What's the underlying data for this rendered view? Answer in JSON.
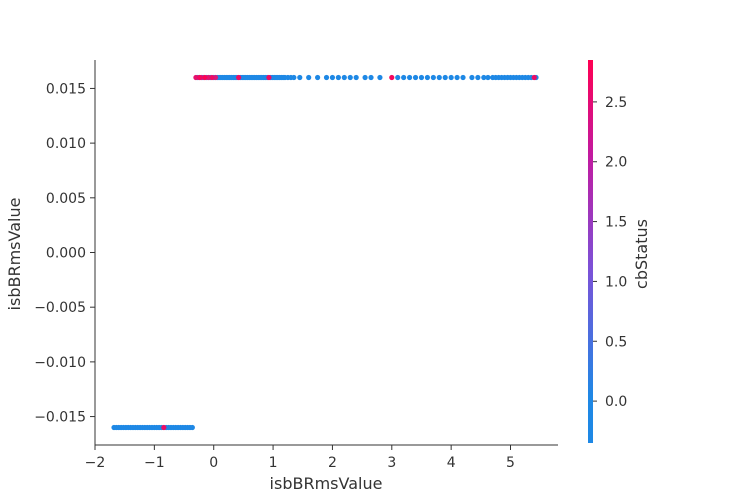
{
  "chart_data": {
    "type": "scatter",
    "xlabel": "isbBRmsValue",
    "ylabel": "isbBRmsValue",
    "xlim": [
      -2,
      5.8
    ],
    "ylim": [
      -0.0176,
      0.0176
    ],
    "x_ticks": [
      -2,
      -1,
      0,
      1,
      2,
      3,
      4,
      5
    ],
    "x_tick_labels": [
      "−2",
      "−1",
      "0",
      "1",
      "2",
      "3",
      "4",
      "5"
    ],
    "y_ticks": [
      0.015,
      0.01,
      0.005,
      0.0,
      -0.005,
      -0.01,
      -0.015
    ],
    "y_tick_labels": [
      "0.015",
      "0.010",
      "0.005",
      "0.000",
      "−0.005",
      "−0.010",
      "−0.015"
    ],
    "grid": false,
    "colorbar": {
      "label": "cbStatus",
      "range": [
        -0.35,
        2.85
      ],
      "ticks": [
        0.0,
        0.5,
        1.0,
        1.5,
        2.0,
        2.5
      ],
      "tick_labels": [
        "0.0",
        "0.5",
        "1.0",
        "1.5",
        "2.0",
        "2.5"
      ],
      "color_low": "#1e88e5",
      "color_mid": "#7b52d8",
      "color_high": "#ff0052"
    },
    "series": [
      {
        "y": 0.016,
        "x": [
          -0.3,
          -0.27,
          -0.24,
          -0.21,
          -0.18,
          -0.15,
          -0.12,
          -0.09,
          -0.06,
          -0.03,
          0.0,
          0.03,
          0.06,
          0.09,
          0.12,
          0.15,
          0.18,
          0.21,
          0.24,
          0.27,
          0.3,
          0.33,
          0.36,
          0.39,
          0.42,
          0.45,
          0.48,
          0.51,
          0.54,
          0.57,
          0.6,
          0.63,
          0.66,
          0.69,
          0.72,
          0.75,
          0.78,
          0.81,
          0.84,
          0.87,
          0.9,
          0.93,
          0.96,
          0.99,
          1.02,
          1.05,
          1.08,
          1.11,
          1.14,
          1.17,
          1.2,
          1.25,
          1.3,
          1.35,
          1.45,
          1.6,
          1.75,
          1.9,
          2.0,
          2.1,
          2.2,
          2.3,
          2.4,
          2.55,
          2.65,
          2.8,
          3.0,
          3.1,
          3.2,
          3.3,
          3.4,
          3.5,
          3.6,
          3.7,
          3.8,
          3.9,
          4.0,
          4.1,
          4.2,
          4.35,
          4.45,
          4.55,
          4.62,
          4.7,
          4.75,
          4.8,
          4.85,
          4.9,
          4.95,
          5.0,
          5.05,
          5.1,
          5.15,
          5.2,
          5.25,
          5.3,
          5.35,
          5.4,
          5.43
        ],
        "c": [
          2.5,
          0.0,
          2.7,
          2.2,
          0.0,
          2.8,
          0.0,
          2.4,
          0.0,
          2.6,
          0.0,
          2.3,
          0.0,
          0.0,
          0.0,
          0.0,
          0.0,
          0.0,
          0.0,
          0.0,
          0.0,
          0.0,
          0.0,
          0.0,
          2.6,
          0.0,
          0.0,
          0.0,
          0.0,
          0.0,
          0.0,
          0.0,
          0.0,
          0.0,
          0.0,
          0.0,
          0.0,
          0.0,
          0.0,
          0.0,
          0.0,
          2.6,
          0.0,
          0.0,
          0.0,
          0.0,
          0.0,
          0.0,
          0.0,
          0.0,
          0.0,
          0.0,
          0.0,
          0.0,
          0.0,
          0.0,
          0.0,
          0.0,
          0.0,
          0.0,
          0.0,
          0.0,
          0.0,
          0.0,
          0.0,
          0.0,
          2.7,
          0.0,
          0.0,
          0.0,
          0.0,
          0.0,
          0.0,
          0.0,
          0.0,
          0.0,
          0.0,
          0.0,
          0.0,
          0.0,
          0.0,
          0.0,
          0.0,
          0.0,
          0.0,
          0.0,
          0.0,
          0.0,
          0.0,
          0.0,
          0.0,
          0.0,
          0.0,
          0.0,
          0.0,
          0.0,
          0.0,
          2.6,
          0.0
        ]
      },
      {
        "y": -0.016,
        "x": [
          -1.68,
          -1.64,
          -1.6,
          -1.56,
          -1.52,
          -1.48,
          -1.44,
          -1.4,
          -1.36,
          -1.32,
          -1.28,
          -1.24,
          -1.2,
          -1.16,
          -1.12,
          -1.08,
          -1.04,
          -1.0,
          -0.96,
          -0.92,
          -0.88,
          -0.84,
          -0.8,
          -0.76,
          -0.72,
          -0.68,
          -0.64,
          -0.6,
          -0.56,
          -0.52,
          -0.48,
          -0.44,
          -0.4,
          -0.36
        ],
        "c": [
          0.0,
          0.0,
          0.0,
          0.0,
          0.0,
          0.0,
          0.0,
          0.0,
          0.0,
          0.0,
          0.0,
          0.0,
          0.0,
          0.0,
          0.0,
          0.0,
          0.0,
          0.0,
          0.0,
          0.0,
          0.0,
          2.6,
          0.0,
          0.0,
          0.0,
          0.0,
          0.0,
          0.0,
          0.0,
          0.0,
          0.0,
          0.0,
          0.0,
          0.0
        ]
      }
    ]
  }
}
